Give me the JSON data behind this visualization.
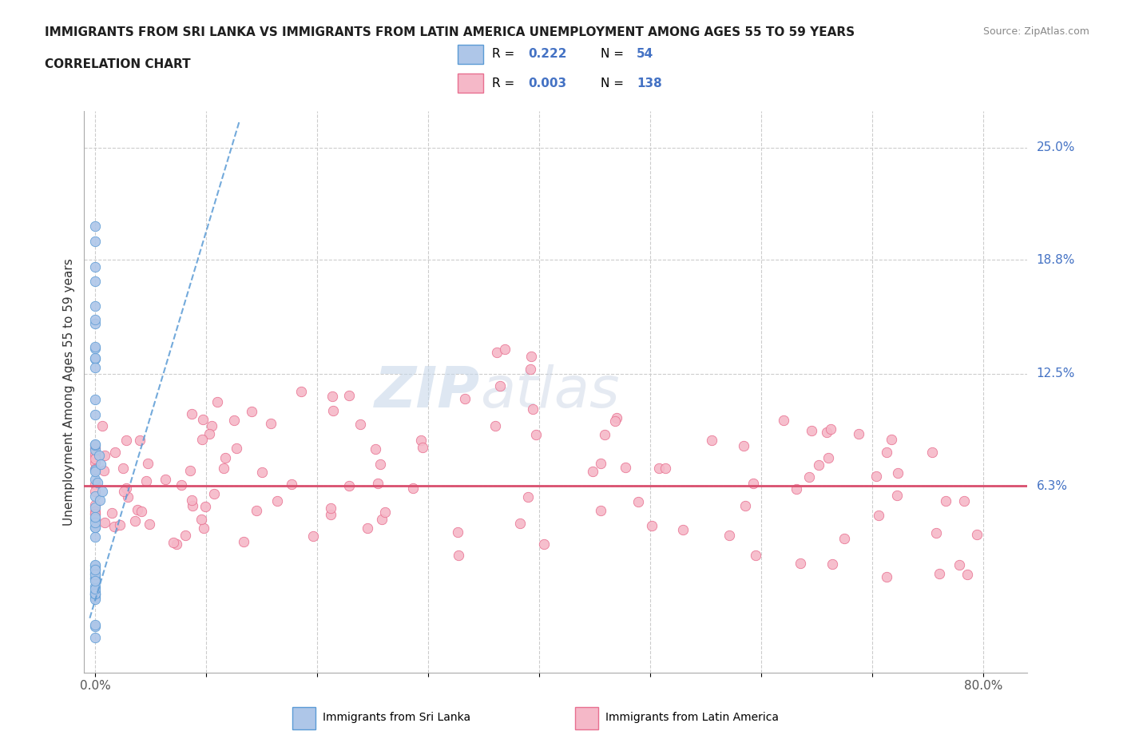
{
  "title_line1": "IMMIGRANTS FROM SRI LANKA VS IMMIGRANTS FROM LATIN AMERICA UNEMPLOYMENT AMONG AGES 55 TO 59 YEARS",
  "title_line2": "CORRELATION CHART",
  "source_text": "Source: ZipAtlas.com",
  "ylabel": "Unemployment Among Ages 55 to 59 years",
  "xlim": [
    -0.01,
    0.84
  ],
  "ylim": [
    -0.04,
    0.27
  ],
  "ytick_values": [
    0.063,
    0.125,
    0.188,
    0.25
  ],
  "ytick_labels": [
    "6.3%",
    "12.5%",
    "18.8%",
    "25.0%"
  ],
  "sri_lanka_color": "#aec6e8",
  "latin_america_color": "#f5b8c8",
  "sri_lanka_edge": "#5b9bd5",
  "latin_america_edge": "#e87090",
  "trend_sri_lanka_color": "#5b9bd5",
  "trend_latin_america_color": "#d94f6e",
  "legend_box_sri": "#aec6e8",
  "legend_box_lat": "#f5b8c8",
  "R_sri": "0.222",
  "N_sri": "54",
  "R_lat": "0.003",
  "N_lat": "138",
  "watermark_zip": "ZIP",
  "watermark_atlas": "atlas",
  "background_color": "#ffffff",
  "grid_color": "#cccccc",
  "right_label_color": "#4472c4",
  "title_color": "#1f1f1f"
}
